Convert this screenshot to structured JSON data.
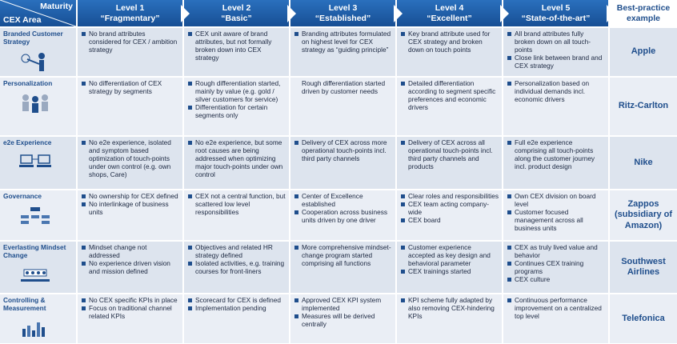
{
  "header": {
    "corner_top": "Maturity",
    "corner_bottom": "CEX Area",
    "levels": [
      {
        "level": "Level 1",
        "name": "“Fragmentary”"
      },
      {
        "level": "Level 2",
        "name": "“Basic”"
      },
      {
        "level": "Level 3",
        "name": "“Established”"
      },
      {
        "level": "Level 4",
        "name": "“Excellent”"
      },
      {
        "level": "Level 5",
        "name": "“State-of-the-art”"
      }
    ],
    "best_practice": "Best-practice example"
  },
  "rows": [
    {
      "area": "Branded Customer Strategy",
      "cells": [
        [
          "No brand attributes considered for CEX / ambition  strategy"
        ],
        [
          "CEX unit aware of brand attributes, but not formally broken down into CEX strategy"
        ],
        [
          "Branding attributes formulated on highest level for CEX strategy as “guiding principle”"
        ],
        [
          "Key brand attribute used for CEX strategy and broken down on touch points"
        ],
        [
          "All brand attributes fully broken down on all touch-points",
          "Close link between brand and CEX strategy"
        ]
      ],
      "example": "Apple"
    },
    {
      "area": "Personalization",
      "cells": [
        [
          "No differentiation of CEX strategy by segments"
        ],
        [
          "Rough differentiation started, mainly by value (e.g. gold / silver customers for service)",
          "Differentiation for certain segments only"
        ],
        "Rough differentiation started driven by customer needs",
        [
          "Detailed differentiation according to segment specific preferences and economic drivers"
        ],
        [
          "Personalization based on individual demands incl. economic drivers"
        ]
      ],
      "example": "Ritz-Carlton"
    },
    {
      "area": "e2e Experience",
      "cells": [
        [
          "No e2e experience, isolated and symptom based optimization of touch-points under own control (e.g. own shops, Care)"
        ],
        [
          "No e2e experience, but some root causes are being addressed when optimizing major touch-points under own control"
        ],
        [
          "Delivery of CEX across more operational touch-points incl. third party channels"
        ],
        [
          "Delivery of CEX  across all operational touch-points incl. third party channels and products"
        ],
        [
          "Full e2e experience comprising all touch-points along the customer journey incl. product design"
        ]
      ],
      "example": "Nike"
    },
    {
      "area": "Governance",
      "cells": [
        [
          "No ownership for CEX defined",
          "No interlinkage of business units"
        ],
        [
          "CEX not a central function, but scattered low level responsibilities"
        ],
        [
          "Center of Excellence established",
          "Cooperation across business units driven by one driver"
        ],
        [
          "Clear roles and responsibilities",
          "CEX team acting company-wide",
          "CEX board"
        ],
        [
          "Own CEX division on board level",
          "Customer focused management across all business units"
        ]
      ],
      "example": "Zappos (subsidiary of Amazon)"
    },
    {
      "area": "Everlasting Mindset Change",
      "cells": [
        [
          "Mindset change not addressed",
          "No experience driven vision and mission defined"
        ],
        [
          "Objectives and related HR strategy defined",
          "Isolated activities, e.g. training courses for front-liners"
        ],
        [
          "More comprehensive mindset-change program started comprising all functions"
        ],
        [
          "Customer experience accepted as key design and behavioral parameter",
          "CEX trainings started"
        ],
        [
          "CEX as truly lived value and behavior",
          "Continues CEX training programs",
          "CEX culture"
        ]
      ],
      "example": "Southwest Airlines"
    },
    {
      "area": "Controlling & Measurement",
      "cells": [
        [
          "No CEX specific KPIs in place",
          "Focus on traditional channel related KPIs"
        ],
        [
          "Scorecard for CEX is defined",
          "Implementation pending"
        ],
        [
          "Approved CEX KPI system implemented",
          "Measures will be derived centrally"
        ],
        [
          "KPI scheme fully adapted by also removing CEX-hindering KPIs"
        ],
        [
          "Continuous performance improvement on a centralized top level"
        ]
      ],
      "example": "Telefonica"
    }
  ]
}
